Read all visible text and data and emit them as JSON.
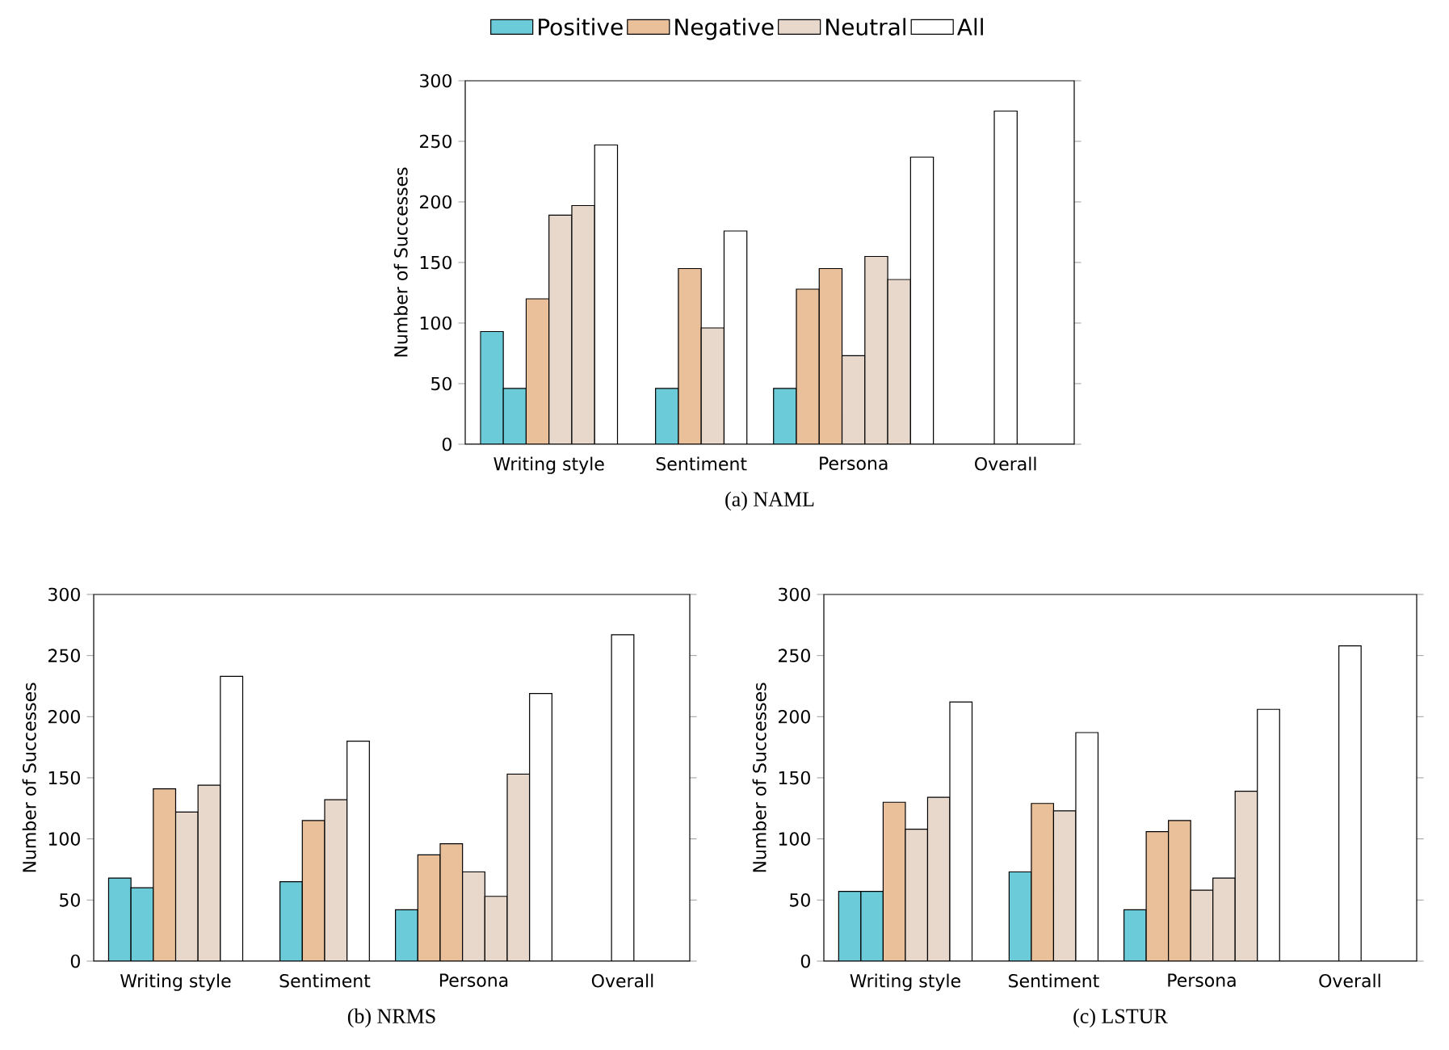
{
  "chart_data": [
    {
      "type": "bar",
      "xlabel": "(a) NAML",
      "ylabel": "Number of Successes",
      "categories": [
        "Writing style",
        "Sentiment",
        "Persona",
        "Overall"
      ],
      "ylim": [
        0,
        300
      ],
      "yticks": [
        0,
        50,
        100,
        150,
        200,
        250,
        300
      ],
      "legend": "top",
      "series": [
        {
          "name": "Positive",
          "color": "#6ccbd8",
          "values": [
            93,
            46,
            46,
            null
          ]
        },
        {
          "color": "#6ccbd8",
          "values": [
            46,
            null,
            null,
            null
          ]
        },
        {
          "name": "Negative",
          "color": "#e9c09a",
          "values": [
            120,
            145,
            128,
            null
          ]
        },
        {
          "color": "#e9c09a",
          "values": [
            null,
            null,
            145,
            null
          ]
        },
        {
          "name": "Neutral",
          "color": "#e8d8cc",
          "values": [
            189,
            96,
            73,
            null
          ]
        },
        {
          "color": "#e8d8cc",
          "values": [
            197,
            null,
            155,
            null
          ]
        },
        {
          "color": "#e8d8cc",
          "values": [
            null,
            null,
            136,
            null
          ]
        },
        {
          "name": "All",
          "color": "#ffffff",
          "values": [
            247,
            176,
            237,
            275
          ]
        }
      ]
    },
    {
      "type": "bar",
      "xlabel": "(b) NRMS",
      "ylabel": "Number of Successes",
      "categories": [
        "Writing style",
        "Sentiment",
        "Persona",
        "Overall"
      ],
      "ylim": [
        0,
        300
      ],
      "yticks": [
        0,
        50,
        100,
        150,
        200,
        250,
        300
      ],
      "series": [
        {
          "color": "#6ccbd8",
          "values": [
            68,
            65,
            42,
            null
          ]
        },
        {
          "color": "#6ccbd8",
          "values": [
            60,
            null,
            null,
            null
          ]
        },
        {
          "color": "#e9c09a",
          "values": [
            141,
            115,
            87,
            null
          ]
        },
        {
          "color": "#e9c09a",
          "values": [
            null,
            null,
            96,
            null
          ]
        },
        {
          "color": "#e8d8cc",
          "values": [
            122,
            132,
            73,
            null
          ]
        },
        {
          "color": "#e8d8cc",
          "values": [
            144,
            null,
            53,
            null
          ]
        },
        {
          "color": "#e8d8cc",
          "values": [
            null,
            null,
            153,
            null
          ]
        },
        {
          "color": "#ffffff",
          "values": [
            233,
            180,
            219,
            267
          ]
        }
      ]
    },
    {
      "type": "bar",
      "xlabel": "(c) LSTUR",
      "ylabel": "Number of Successes",
      "categories": [
        "Writing style",
        "Sentiment",
        "Persona",
        "Overall"
      ],
      "ylim": [
        0,
        300
      ],
      "yticks": [
        0,
        50,
        100,
        150,
        200,
        250,
        300
      ],
      "series": [
        {
          "color": "#6ccbd8",
          "values": [
            57,
            73,
            42,
            null
          ]
        },
        {
          "color": "#6ccbd8",
          "values": [
            57,
            null,
            null,
            null
          ]
        },
        {
          "color": "#e9c09a",
          "values": [
            130,
            129,
            106,
            null
          ]
        },
        {
          "color": "#e9c09a",
          "values": [
            null,
            null,
            115,
            null
          ]
        },
        {
          "color": "#e8d8cc",
          "values": [
            108,
            123,
            58,
            null
          ]
        },
        {
          "color": "#e8d8cc",
          "values": [
            134,
            null,
            68,
            null
          ]
        },
        {
          "color": "#e8d8cc",
          "values": [
            null,
            null,
            139,
            null
          ]
        },
        {
          "color": "#ffffff",
          "values": [
            212,
            187,
            206,
            258
          ]
        }
      ]
    }
  ]
}
